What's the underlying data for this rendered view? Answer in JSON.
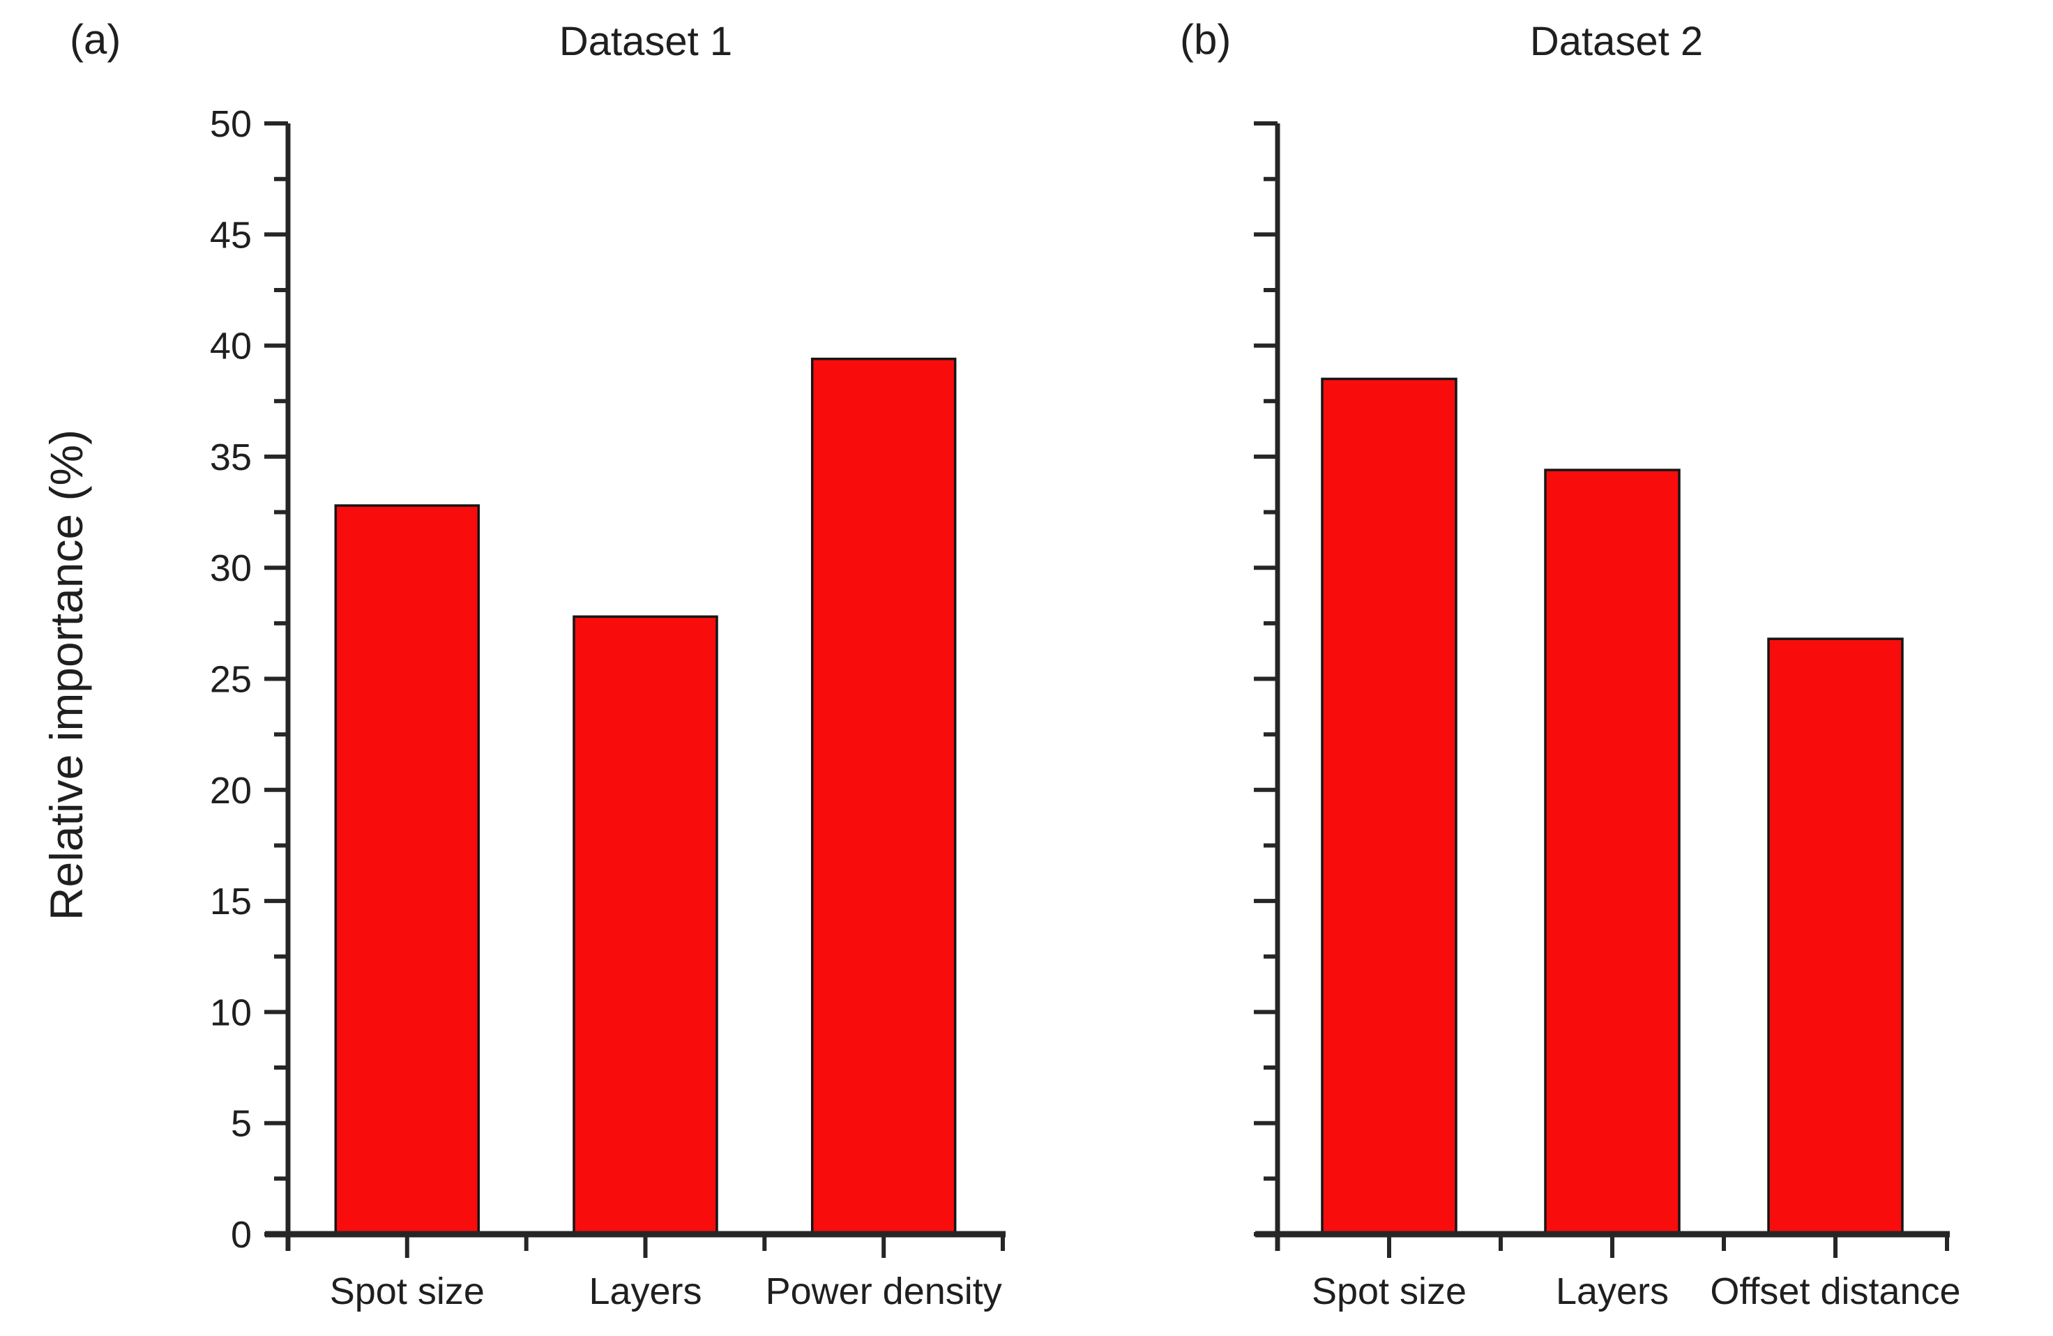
{
  "figure": {
    "panel_a_label": "(a)",
    "panel_b_label": "(b)",
    "y_axis_title": "Relative importance (%)"
  },
  "colors": {
    "bar_fill": "#f90c0c",
    "bar_stroke": "#161616",
    "axis": "#262626",
    "text": "#1f1f1f"
  },
  "chart_data": [
    {
      "type": "bar",
      "panel": "a",
      "title": "Dataset 1",
      "categories": [
        "Spot size",
        "Layers",
        "Power density"
      ],
      "values": [
        32.8,
        27.8,
        39.4
      ],
      "xlabel": "",
      "ylabel": "Relative importance (%)",
      "ylim": [
        0,
        50
      ],
      "y_major_tick_step": 5,
      "y_minor_tick_step": 2.5,
      "y_tick_labels": [
        "0",
        "5",
        "10",
        "15",
        "20",
        "25",
        "30",
        "35",
        "40",
        "45",
        "50"
      ],
      "show_y_tick_labels": true,
      "grid": false,
      "legend": "none"
    },
    {
      "type": "bar",
      "panel": "b",
      "title": "Dataset 2",
      "categories": [
        "Spot size",
        "Layers",
        "Offset distance"
      ],
      "values": [
        38.5,
        34.4,
        26.8
      ],
      "xlabel": "",
      "ylabel": "",
      "ylim": [
        0,
        50
      ],
      "y_major_tick_step": 5,
      "y_minor_tick_step": 2.5,
      "y_tick_labels": [],
      "show_y_tick_labels": false,
      "grid": false,
      "legend": "none"
    }
  ]
}
